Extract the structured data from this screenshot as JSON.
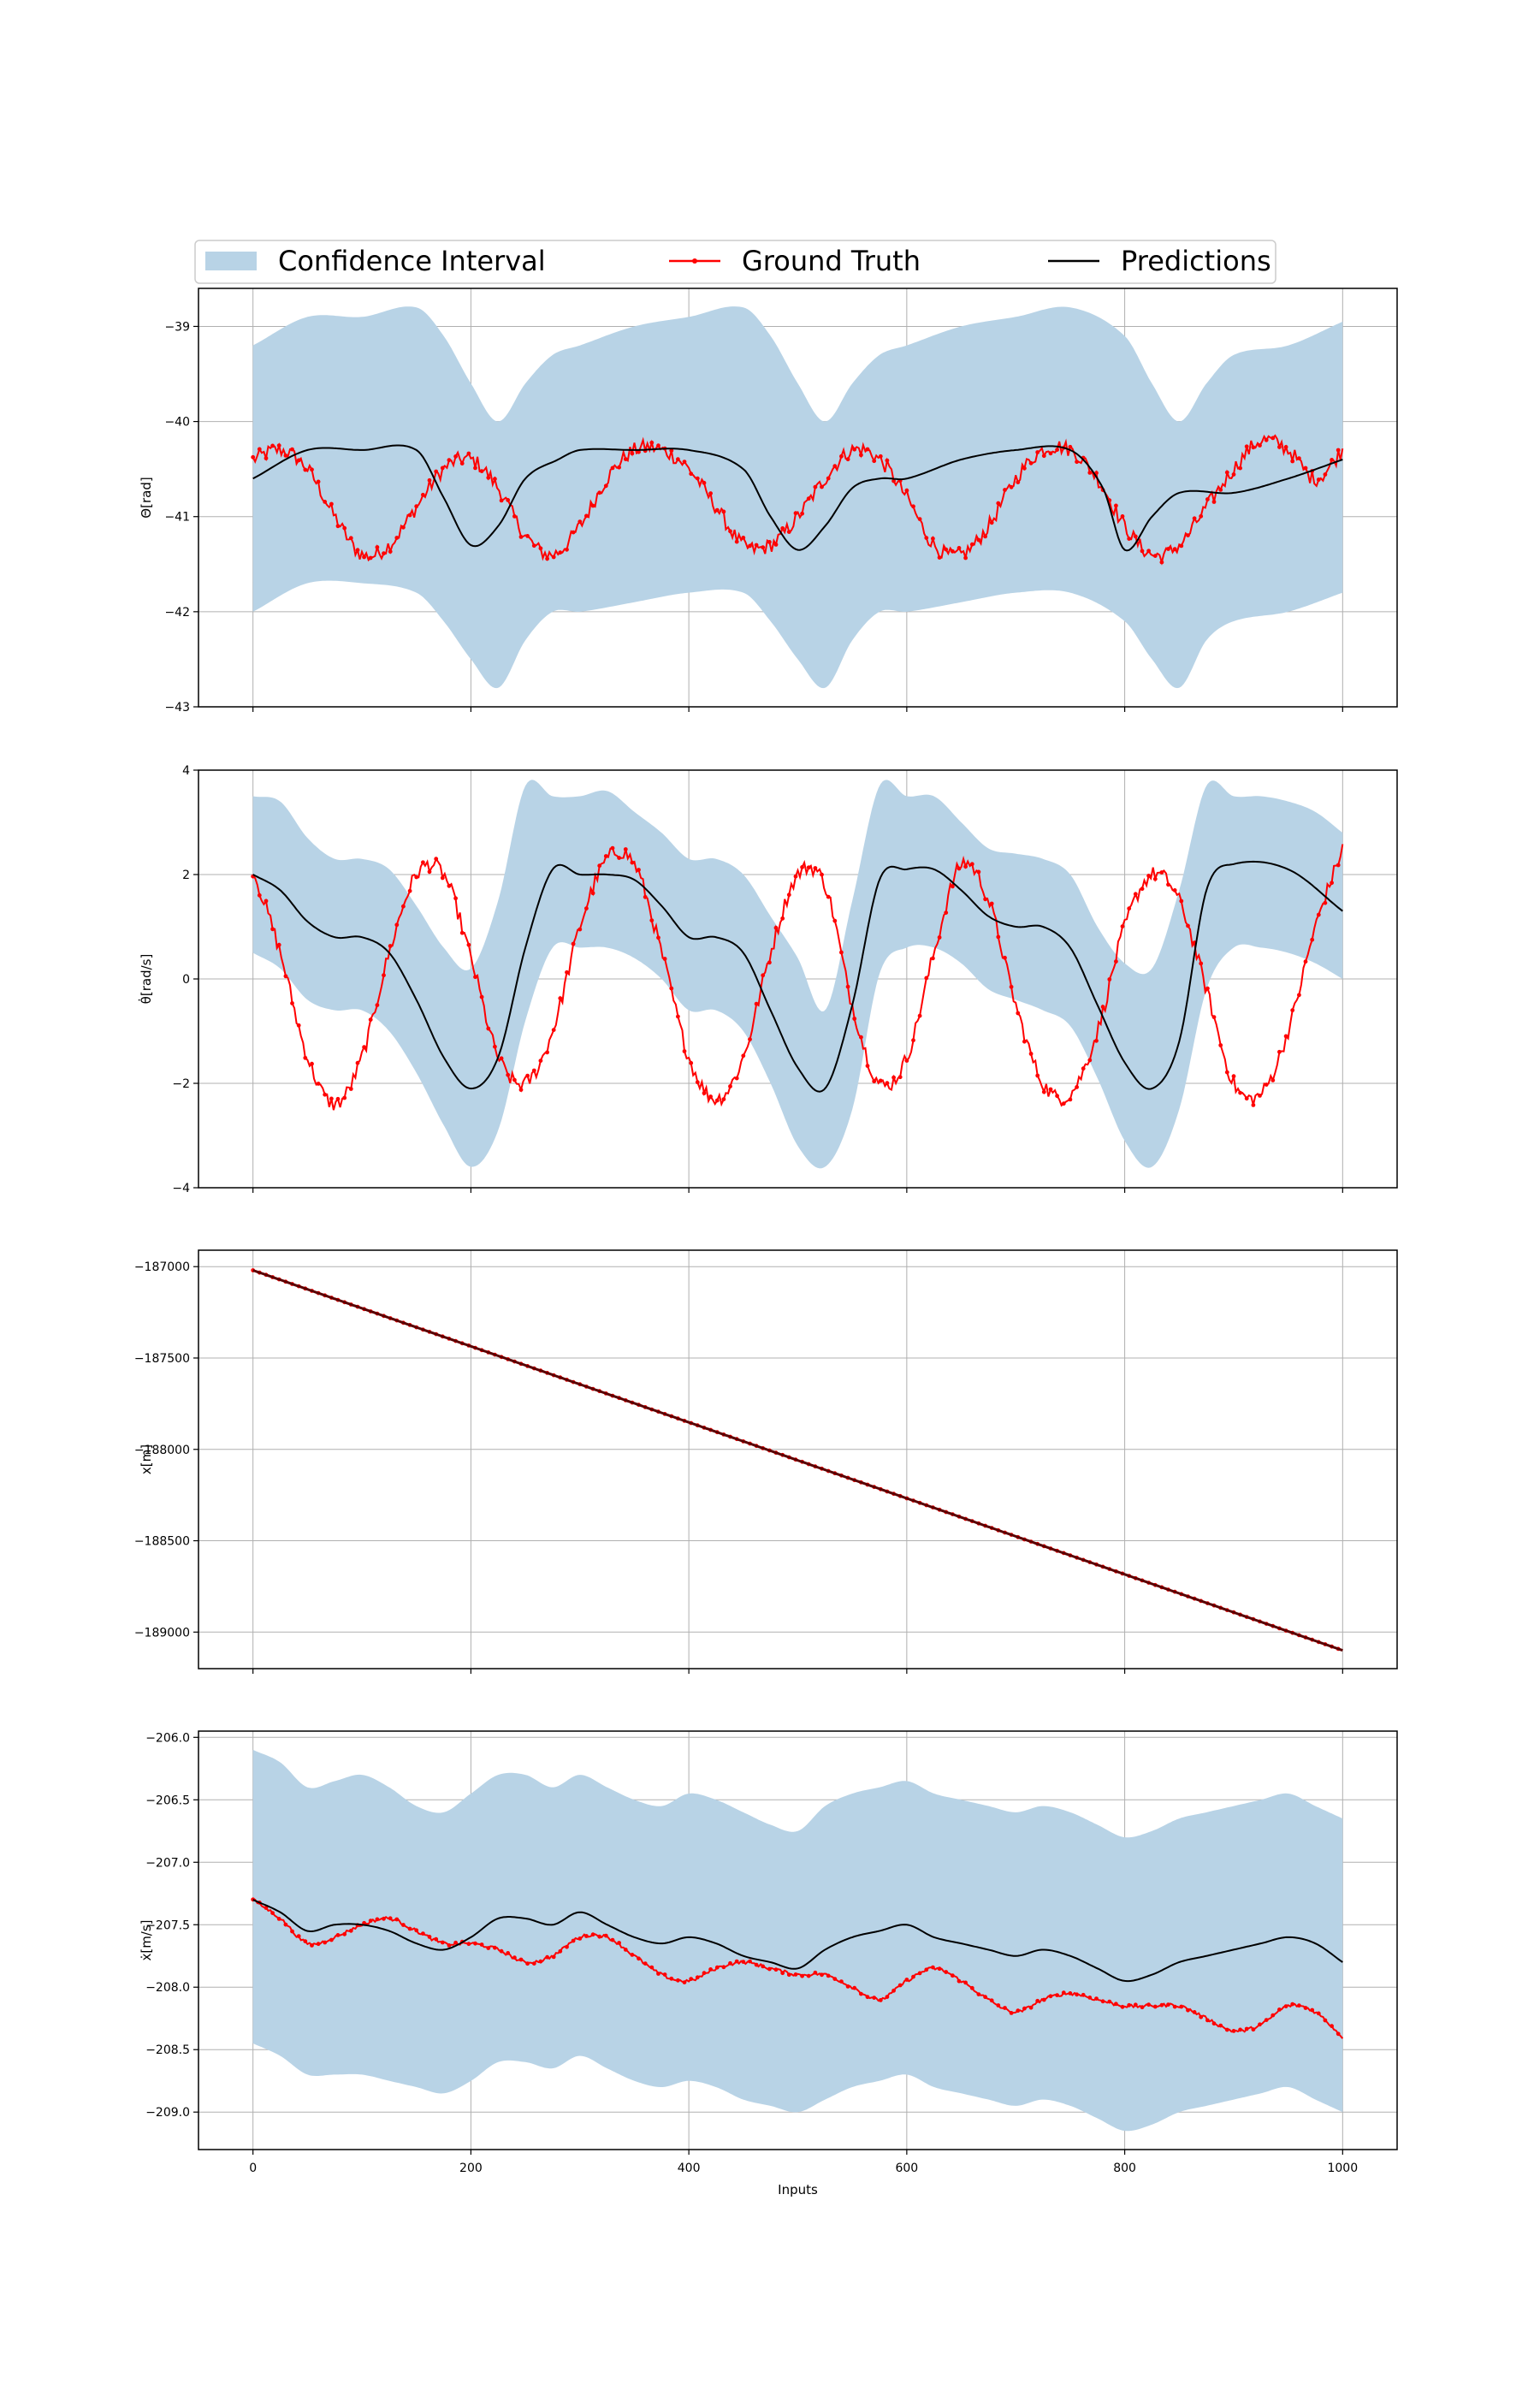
{
  "legend": {
    "position": "top",
    "entries": [
      {
        "label": "Confidence Interval",
        "kind": "band",
        "color": "#b8d3e6"
      },
      {
        "label": "Ground Truth",
        "kind": "line-marker",
        "color": "#ff0000"
      },
      {
        "label": "Predictions",
        "kind": "line",
        "color": "#000000"
      }
    ]
  },
  "colors": {
    "band": "#b8d3e6",
    "truth": "#ff0000",
    "prediction": "#000000",
    "grid": "#b0b0b0"
  },
  "chart_data": [
    {
      "type": "line",
      "ylabel": "Θ[rad]",
      "xlabel": "",
      "xlim": [
        -50,
        1050
      ],
      "ylim": [
        -43,
        -38.6
      ],
      "yticks": [
        -43,
        -42,
        -41,
        -40,
        -39
      ],
      "ytick_labels": [
        "−43",
        "−42",
        "−41",
        "−40",
        "−39"
      ],
      "xticks": [
        0,
        200,
        400,
        600,
        800,
        1000
      ],
      "xtick_labels": [],
      "grid": true,
      "series": [
        {
          "name": "Predictions",
          "x": [
            0,
            50,
            100,
            150,
            175,
            200,
            225,
            250,
            280,
            300,
            350,
            400,
            450,
            475,
            500,
            525,
            550,
            575,
            600,
            650,
            700,
            750,
            780,
            800,
            825,
            850,
            900,
            950,
            1000
          ],
          "values": [
            -40.6,
            -40.3,
            -40.3,
            -40.3,
            -40.8,
            -41.3,
            -41.1,
            -40.6,
            -40.4,
            -40.3,
            -40.3,
            -40.3,
            -40.5,
            -41.0,
            -41.35,
            -41.1,
            -40.7,
            -40.6,
            -40.6,
            -40.4,
            -40.3,
            -40.3,
            -40.7,
            -41.35,
            -41.0,
            -40.75,
            -40.75,
            -40.6,
            -40.4
          ]
        },
        {
          "name": "Ground Truth",
          "x": [
            0,
            25,
            50,
            75,
            100,
            125,
            150,
            175,
            200,
            225,
            250,
            275,
            300,
            325,
            350,
            375,
            400,
            425,
            450,
            475,
            500,
            525,
            550,
            575,
            600,
            625,
            650,
            675,
            700,
            725,
            750,
            775,
            800,
            825,
            850,
            875,
            900,
            925,
            950,
            975,
            1000
          ],
          "values": [
            -40.4,
            -40.3,
            -40.5,
            -41.0,
            -41.4,
            -41.3,
            -40.9,
            -40.5,
            -40.4,
            -40.7,
            -41.2,
            -41.4,
            -41.1,
            -40.6,
            -40.3,
            -40.3,
            -40.5,
            -40.9,
            -41.3,
            -41.3,
            -41.0,
            -40.6,
            -40.3,
            -40.4,
            -40.8,
            -41.3,
            -41.4,
            -41.1,
            -40.6,
            -40.3,
            -40.3,
            -40.6,
            -41.1,
            -41.4,
            -41.3,
            -40.9,
            -40.5,
            -40.2,
            -40.3,
            -40.6,
            -40.3
          ]
        },
        {
          "name": "Confidence Interval",
          "x": [
            0,
            50,
            100,
            150,
            175,
            200,
            225,
            250,
            275,
            300,
            350,
            400,
            450,
            475,
            500,
            525,
            550,
            575,
            600,
            650,
            700,
            750,
            800,
            825,
            850,
            875,
            900,
            950,
            1000
          ],
          "upper": [
            -39.2,
            -38.9,
            -38.9,
            -38.8,
            -39.1,
            -39.6,
            -40.0,
            -39.6,
            -39.3,
            -39.2,
            -39.0,
            -38.9,
            -38.8,
            -39.1,
            -39.6,
            -40.0,
            -39.6,
            -39.3,
            -39.2,
            -39.0,
            -38.9,
            -38.8,
            -39.1,
            -39.6,
            -40.0,
            -39.6,
            -39.3,
            -39.2,
            -38.95
          ],
          "lower": [
            -42.0,
            -41.7,
            -41.7,
            -41.8,
            -42.1,
            -42.5,
            -42.8,
            -42.3,
            -42.0,
            -42.0,
            -41.9,
            -41.8,
            -41.8,
            -42.1,
            -42.5,
            -42.8,
            -42.3,
            -42.0,
            -42.0,
            -41.9,
            -41.8,
            -41.8,
            -42.1,
            -42.5,
            -42.8,
            -42.3,
            -42.1,
            -42.0,
            -41.8
          ]
        }
      ]
    },
    {
      "type": "line",
      "ylabel": "θ̇[rad/s]",
      "xlabel": "",
      "xlim": [
        -50,
        1050
      ],
      "ylim": [
        -4,
        4
      ],
      "yticks": [
        -4,
        -2,
        0,
        2,
        4
      ],
      "ytick_labels": [
        "−4",
        "−2",
        "0",
        "2",
        "4"
      ],
      "xticks": [
        0,
        200,
        400,
        600,
        800,
        1000
      ],
      "xtick_labels": [],
      "grid": true,
      "series": [
        {
          "name": "Predictions",
          "x": [
            0,
            25,
            50,
            75,
            100,
            125,
            150,
            175,
            200,
            225,
            250,
            275,
            300,
            325,
            350,
            375,
            400,
            425,
            450,
            475,
            500,
            525,
            550,
            575,
            600,
            625,
            650,
            675,
            700,
            725,
            750,
            775,
            800,
            825,
            850,
            875,
            900,
            950,
            1000
          ],
          "values": [
            2.0,
            1.7,
            1.1,
            0.8,
            0.8,
            0.5,
            -0.4,
            -1.5,
            -2.1,
            -1.5,
            0.6,
            2.1,
            2.0,
            2.0,
            1.9,
            1.4,
            0.8,
            0.8,
            0.5,
            -0.6,
            -1.7,
            -2.1,
            -0.5,
            1.9,
            2.1,
            2.1,
            1.7,
            1.2,
            1.0,
            1.0,
            0.6,
            -0.5,
            -1.6,
            -2.1,
            -1.2,
            1.7,
            2.2,
            2.1,
            1.3
          ]
        },
        {
          "name": "Ground Truth",
          "x": [
            0,
            25,
            50,
            75,
            100,
            125,
            150,
            175,
            200,
            225,
            250,
            275,
            300,
            325,
            350,
            375,
            400,
            425,
            450,
            475,
            500,
            525,
            550,
            575,
            600,
            625,
            650,
            675,
            700,
            725,
            750,
            775,
            800,
            825,
            850,
            875,
            900,
            925,
            950,
            975,
            1000
          ],
          "values": [
            2.1,
            0.5,
            -1.5,
            -2.4,
            -1.5,
            0.5,
            2.0,
            2.0,
            0.4,
            -1.5,
            -2.0,
            -1.0,
            1.0,
            2.3,
            2.2,
            0.5,
            -1.5,
            -2.3,
            -1.5,
            0.5,
            2.0,
            1.8,
            -0.5,
            -2.0,
            -1.5,
            0.5,
            2.2,
            1.5,
            -0.5,
            -2.0,
            -2.2,
            -1.0,
            1.0,
            2.0,
            1.5,
            -0.2,
            -2.0,
            -2.2,
            -1.0,
            1.0,
            2.5
          ]
        },
        {
          "name": "Confidence Interval",
          "x": [
            0,
            25,
            50,
            75,
            100,
            125,
            150,
            175,
            200,
            225,
            250,
            275,
            300,
            325,
            350,
            375,
            400,
            425,
            450,
            475,
            500,
            525,
            550,
            575,
            600,
            625,
            650,
            675,
            700,
            725,
            750,
            775,
            800,
            825,
            850,
            875,
            900,
            925,
            950,
            975,
            1000
          ],
          "upper": [
            3.5,
            3.4,
            2.7,
            2.3,
            2.3,
            2.1,
            1.4,
            0.6,
            0.2,
            1.5,
            3.7,
            3.5,
            3.5,
            3.6,
            3.2,
            2.8,
            2.3,
            2.3,
            2.0,
            1.2,
            0.4,
            -0.6,
            1.5,
            3.7,
            3.5,
            3.5,
            3.0,
            2.5,
            2.4,
            2.3,
            2.0,
            1.0,
            0.3,
            0.2,
            1.7,
            3.7,
            3.5,
            3.5,
            3.4,
            3.2,
            2.8
          ],
          "lower": [
            0.5,
            0.2,
            -0.4,
            -0.6,
            -0.6,
            -1.0,
            -1.8,
            -2.8,
            -3.6,
            -2.9,
            -0.8,
            0.6,
            0.6,
            0.6,
            0.4,
            0.0,
            -0.6,
            -0.6,
            -1.0,
            -2.0,
            -3.2,
            -3.6,
            -2.5,
            0.1,
            0.6,
            0.6,
            0.3,
            -0.2,
            -0.4,
            -0.6,
            -0.9,
            -1.9,
            -3.1,
            -3.6,
            -2.5,
            -0.2,
            0.6,
            0.6,
            0.5,
            0.3,
            0.0
          ]
        }
      ]
    },
    {
      "type": "line",
      "ylabel": "x[m]",
      "xlabel": "",
      "xlim": [
        -50,
        1050
      ],
      "ylim": [
        -189200,
        -186910
      ],
      "yticks": [
        -189000,
        -188500,
        -188000,
        -187500,
        -187000
      ],
      "ytick_labels": [
        "−189000",
        "−188500",
        "−188000",
        "−187500",
        "−187000"
      ],
      "xticks": [
        0,
        200,
        400,
        600,
        800,
        1000
      ],
      "xtick_labels": [],
      "grid": true,
      "series": [
        {
          "name": "Predictions",
          "x": [
            0,
            1000
          ],
          "values": [
            -187020,
            -189100
          ]
        },
        {
          "name": "Ground Truth",
          "x": [
            0,
            1000
          ],
          "values": [
            -187020,
            -189100
          ]
        }
      ]
    },
    {
      "type": "line",
      "ylabel": "ẋ[m/s]",
      "xlabel": "Inputs",
      "xlim": [
        -50,
        1050
      ],
      "ylim": [
        -209.3,
        -205.95
      ],
      "yticks": [
        -209.0,
        -208.5,
        -208.0,
        -207.5,
        -207.0,
        -206.5,
        -206.0
      ],
      "ytick_labels": [
        "−209.0",
        "−208.5",
        "−208.0",
        "−207.5",
        "−207.0",
        "−206.5",
        "−206.0"
      ],
      "xticks": [
        0,
        200,
        400,
        600,
        800,
        1000
      ],
      "xtick_labels": [
        "0",
        "200",
        "400",
        "600",
        "800",
        "1000"
      ],
      "grid": true,
      "series": [
        {
          "name": "Predictions",
          "x": [
            0,
            25,
            50,
            75,
            100,
            125,
            150,
            175,
            200,
            225,
            250,
            275,
            300,
            325,
            350,
            375,
            400,
            425,
            450,
            475,
            500,
            525,
            550,
            575,
            600,
            625,
            650,
            675,
            700,
            725,
            750,
            775,
            800,
            825,
            850,
            875,
            900,
            925,
            950,
            975,
            1000
          ],
          "values": [
            -207.3,
            -207.4,
            -207.55,
            -207.5,
            -207.5,
            -207.55,
            -207.65,
            -207.7,
            -207.6,
            -207.45,
            -207.45,
            -207.5,
            -207.4,
            -207.5,
            -207.6,
            -207.65,
            -207.6,
            -207.65,
            -207.75,
            -207.8,
            -207.85,
            -207.7,
            -207.6,
            -207.55,
            -207.5,
            -207.6,
            -207.65,
            -207.7,
            -207.75,
            -207.7,
            -207.75,
            -207.85,
            -207.95,
            -207.9,
            -207.8,
            -207.75,
            -207.7,
            -207.65,
            -207.6,
            -207.65,
            -207.8
          ]
        },
        {
          "name": "Ground Truth",
          "x": [
            0,
            25,
            50,
            75,
            100,
            125,
            150,
            175,
            200,
            225,
            250,
            275,
            300,
            325,
            350,
            375,
            400,
            425,
            450,
            475,
            500,
            525,
            550,
            575,
            600,
            625,
            650,
            675,
            700,
            725,
            750,
            775,
            800,
            825,
            850,
            875,
            900,
            925,
            950,
            975,
            1000
          ],
          "values": [
            -207.3,
            -207.45,
            -207.65,
            -207.6,
            -207.5,
            -207.45,
            -207.55,
            -207.65,
            -207.65,
            -207.7,
            -207.8,
            -207.75,
            -207.6,
            -207.6,
            -207.75,
            -207.9,
            -207.95,
            -207.85,
            -207.8,
            -207.85,
            -207.9,
            -207.9,
            -208.0,
            -208.1,
            -207.95,
            -207.85,
            -207.95,
            -208.1,
            -208.2,
            -208.1,
            -208.05,
            -208.1,
            -208.15,
            -208.15,
            -208.15,
            -208.25,
            -208.35,
            -208.3,
            -208.15,
            -208.2,
            -208.4
          ]
        },
        {
          "name": "Confidence Interval",
          "x": [
            0,
            25,
            50,
            75,
            100,
            125,
            150,
            175,
            200,
            225,
            250,
            275,
            300,
            325,
            350,
            375,
            400,
            425,
            450,
            475,
            500,
            525,
            550,
            575,
            600,
            625,
            650,
            675,
            700,
            725,
            750,
            775,
            800,
            825,
            850,
            875,
            900,
            925,
            950,
            975,
            1000
          ],
          "upper": [
            -206.1,
            -206.2,
            -206.4,
            -206.35,
            -206.3,
            -206.4,
            -206.55,
            -206.6,
            -206.45,
            -206.3,
            -206.3,
            -206.4,
            -206.3,
            -206.4,
            -206.5,
            -206.55,
            -206.45,
            -206.5,
            -206.6,
            -206.7,
            -206.75,
            -206.55,
            -206.45,
            -206.4,
            -206.35,
            -206.45,
            -206.5,
            -206.55,
            -206.6,
            -206.55,
            -206.6,
            -206.7,
            -206.8,
            -206.75,
            -206.65,
            -206.6,
            -206.55,
            -206.5,
            -206.45,
            -206.55,
            -206.65
          ],
          "lower": [
            -208.45,
            -208.55,
            -208.7,
            -208.7,
            -208.7,
            -208.75,
            -208.8,
            -208.85,
            -208.75,
            -208.6,
            -208.6,
            -208.65,
            -208.55,
            -208.65,
            -208.75,
            -208.8,
            -208.75,
            -208.8,
            -208.9,
            -208.95,
            -209.0,
            -208.9,
            -208.8,
            -208.75,
            -208.7,
            -208.8,
            -208.85,
            -208.9,
            -208.95,
            -208.9,
            -208.95,
            -209.05,
            -209.15,
            -209.1,
            -209.0,
            -208.95,
            -208.9,
            -208.85,
            -208.8,
            -208.9,
            -209.0
          ]
        }
      ]
    }
  ]
}
